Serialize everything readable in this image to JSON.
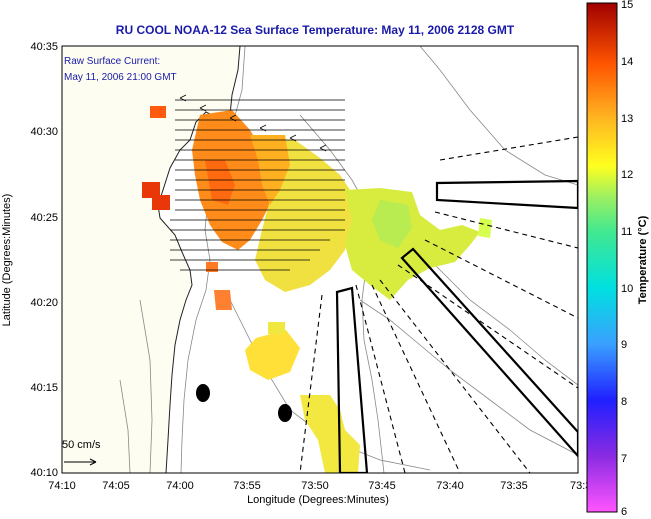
{
  "title": "RU COOL  NOAA-12  Sea Surface Temperature:  May 11, 2006 2128 GMT",
  "current_note": {
    "line1": "Raw Surface Current:",
    "line2": "May 11, 2006 21:00 GMT"
  },
  "scale_label": "50 cm/s",
  "axes": {
    "xlabel": "Longitude (Degrees:Minutes)",
    "ylabel": "Latitude (Degrees:Minutes)",
    "xticks": [
      "74:10",
      "74:05",
      "74:00",
      "73:55",
      "73:50",
      "73:45",
      "73:40",
      "73:35",
      "73:3"
    ],
    "yticks": [
      "40:35",
      "40:30",
      "40:25",
      "40:20",
      "40:15",
      "40:10"
    ]
  },
  "colorbar": {
    "label": "Temperature (°C)",
    "ticks": [
      "15",
      "14",
      "13",
      "12",
      "11",
      "10",
      "9",
      "8",
      "7",
      "6"
    ],
    "range": [
      6,
      15
    ]
  },
  "colors": {
    "title": "#1a1aa8",
    "land": "#fdfdf2",
    "sea": "#ffffff"
  }
}
